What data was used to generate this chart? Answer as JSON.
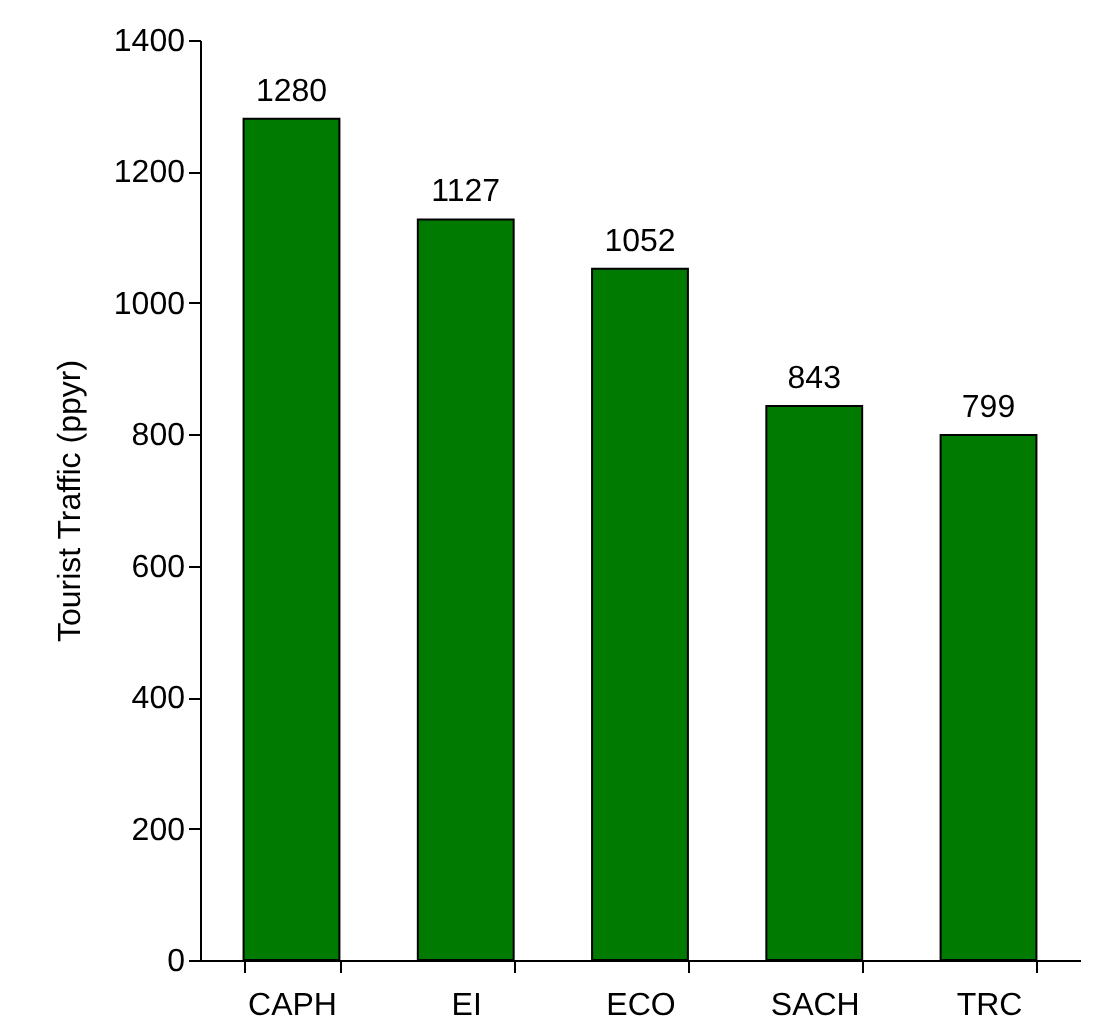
{
  "chart_data": {
    "type": "bar",
    "ylabel": "Tourist Traffic (ppyr)",
    "categories": [
      "CAPH",
      "EI",
      "ECO",
      "SACH",
      "TRC"
    ],
    "values": [
      1280,
      1127,
      1052,
      843,
      799
    ],
    "color": "#007a00",
    "ylim": [
      0,
      1400
    ],
    "yticks": [
      0,
      200,
      400,
      600,
      800,
      1000,
      1200,
      1400
    ],
    "data_labels": true,
    "grid": false
  }
}
